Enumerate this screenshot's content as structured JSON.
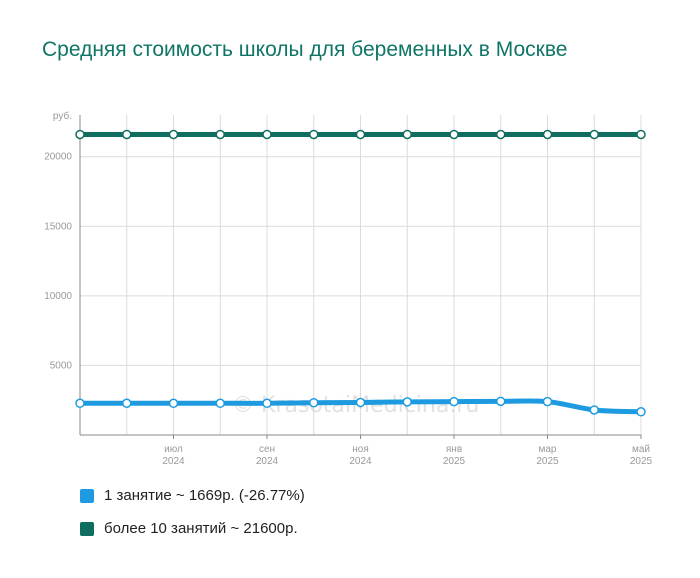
{
  "title": "Средняя стоимость школы для беременных  в Москве",
  "watermark": "© KrasotaiMedicina.ru",
  "chart_data": {
    "type": "line",
    "y_unit_label": "руб.",
    "ylim": [
      0,
      23000
    ],
    "y_ticks": [
      5000,
      10000,
      15000,
      20000
    ],
    "x": [
      "2024-05",
      "2024-06",
      "2024-07",
      "2024-08",
      "2024-09",
      "2024-10",
      "2024-11",
      "2024-12",
      "2025-01",
      "2025-02",
      "2025-03",
      "2025-04",
      "2025-05"
    ],
    "x_tick_labels": [
      {
        "month": "июл",
        "year": "2024",
        "at": "2024-07"
      },
      {
        "month": "сен",
        "year": "2024",
        "at": "2024-09"
      },
      {
        "month": "ноя",
        "year": "2024",
        "at": "2024-11"
      },
      {
        "month": "янв",
        "year": "2025",
        "at": "2025-01"
      },
      {
        "month": "мар",
        "year": "2025",
        "at": "2025-03"
      },
      {
        "month": "май",
        "year": "2025",
        "at": "2025-05"
      }
    ],
    "grid": true,
    "series": [
      {
        "name": "1 занятие ~ 1669р. (-26.77%)",
        "color": "#1e9be0",
        "values": [
          2280,
          2280,
          2280,
          2280,
          2280,
          2320,
          2340,
          2380,
          2400,
          2420,
          2400,
          1800,
          1669
        ]
      },
      {
        "name": "более 10 занятий ~ 21600р.",
        "color": "#0f6e5f",
        "values": [
          21600,
          21600,
          21600,
          21600,
          21600,
          21600,
          21600,
          21600,
          21600,
          21600,
          21600,
          21600,
          21600
        ]
      }
    ],
    "legend_position": "bottom-left"
  }
}
